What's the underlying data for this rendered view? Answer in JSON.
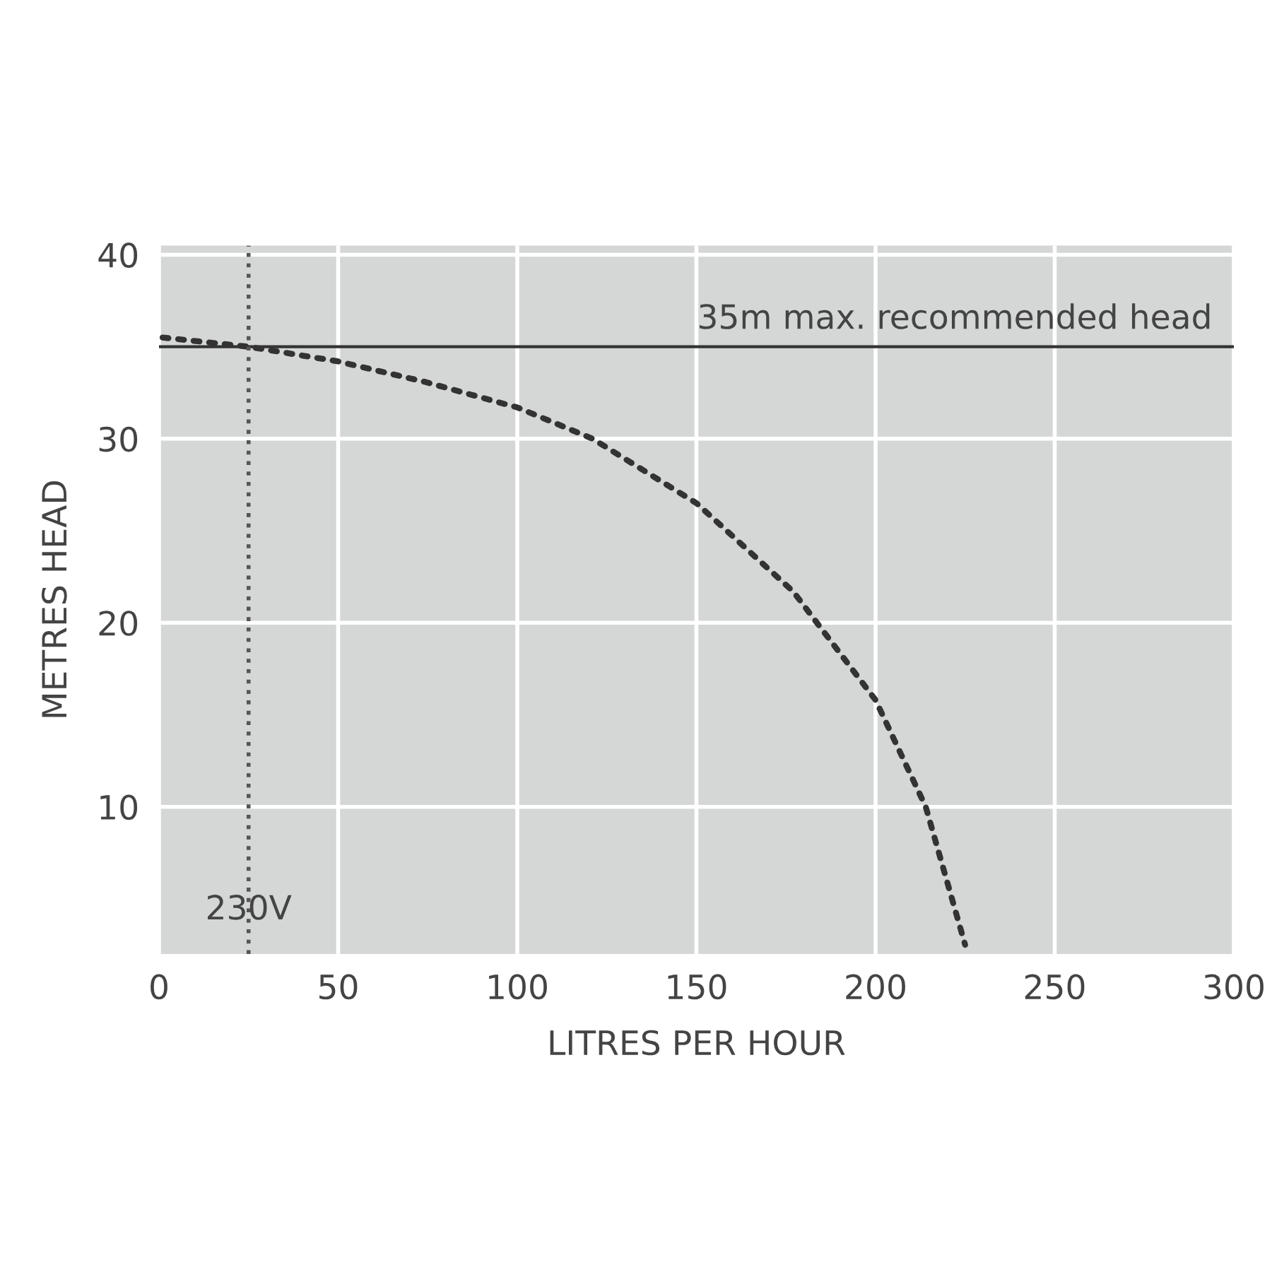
{
  "chart_data": {
    "type": "line",
    "xlabel": "LITRES PER HOUR",
    "ylabel": "METRES HEAD",
    "series": [
      {
        "color": "#333333",
        "line_style": "dotted",
        "x": [
          1,
          25,
          50,
          74,
          100,
          121,
          150,
          177,
          200,
          214,
          225
        ],
        "values": [
          35.5,
          35,
          34.2,
          33.1,
          31.7,
          30,
          26.5,
          21.7,
          15.8,
          10,
          2.5
        ]
      }
    ],
    "xlim": [
      0,
      300
    ],
    "xticks": [
      0,
      50,
      100,
      150,
      200,
      250,
      300
    ],
    "ylim": [
      2,
      40.5
    ],
    "yticks": [
      10,
      20,
      30,
      40
    ],
    "grid": true,
    "ref_lines": [
      {
        "axis": "y",
        "value": 35,
        "label": "35m max. recommended head",
        "color": "#333333",
        "line_style": "solid"
      },
      {
        "axis": "x",
        "value": 25,
        "label": "230V",
        "color": "#555555",
        "line_style": "dotted"
      }
    ]
  }
}
